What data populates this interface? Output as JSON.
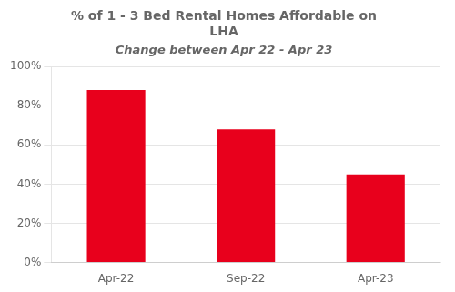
{
  "chart_data": {
    "type": "bar",
    "title": [
      "% of 1 - 3 Bed Rental Homes Affordable on",
      "LHA"
    ],
    "subtitle": "Change between Apr 22 - Apr 23",
    "categories": [
      "Apr-22",
      "Sep-22",
      "Apr-23"
    ],
    "values": [
      88,
      68,
      45
    ],
    "color": "#e8001c",
    "ylim": [
      0,
      100
    ],
    "yticks": [
      {
        "value": 0,
        "label": "0%"
      },
      {
        "value": 20,
        "label": "20%"
      },
      {
        "value": 40,
        "label": "40%"
      },
      {
        "value": 60,
        "label": "60%"
      },
      {
        "value": 80,
        "label": "80%"
      },
      {
        "value": 100,
        "label": "100%"
      }
    ],
    "grid": true
  }
}
